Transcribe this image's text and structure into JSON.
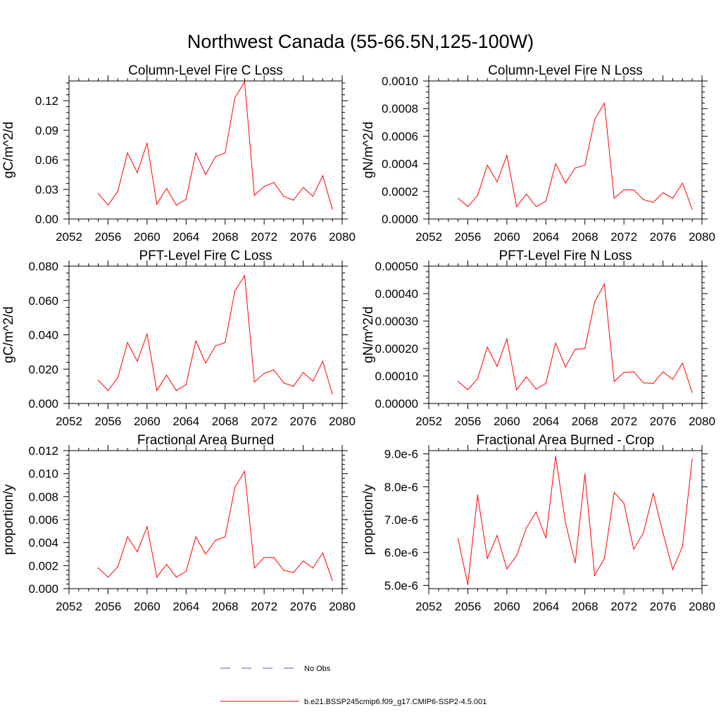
{
  "title": "Northwest Canada (55-66.5N,125-100W)",
  "colors": {
    "model": "#ff0000",
    "obs": "#5a5abf",
    "axis": "#000000"
  },
  "legend": {
    "obs_label": "No Obs",
    "model_label": "b.e21.BSSP245cmip6.f09_g17.CMIP6-SSP2-4.5.001"
  },
  "chart_data": [
    {
      "type": "line",
      "title": "Column-Level Fire C Loss",
      "ylabel": "gC/m^2/d",
      "xlim": [
        2052,
        2080
      ],
      "ylim": [
        0,
        0.14
      ],
      "xticks": [
        2052,
        2056,
        2060,
        2064,
        2068,
        2072,
        2076,
        2080
      ],
      "xtick_labels": [
        "2052",
        "2056",
        "2060",
        "2064",
        "2068",
        "2072",
        "2076",
        "2080"
      ],
      "yticks": [
        0,
        0.03,
        0.06,
        0.09,
        0.12
      ],
      "ytick_labels": [
        "0.00",
        "0.03",
        "0.06",
        "0.09",
        "0.12"
      ],
      "x": [
        2055,
        2056,
        2057,
        2058,
        2059,
        2060,
        2061,
        2062,
        2063,
        2064,
        2065,
        2066,
        2067,
        2068,
        2069,
        2070,
        2071,
        2072,
        2073,
        2074,
        2075,
        2076,
        2077,
        2078,
        2079
      ],
      "series": [
        {
          "name": "b.e21.BSSP245cmip6.f09_g17.CMIP6-SSP2-4.5.001",
          "values": [
            0.026,
            0.014,
            0.028,
            0.067,
            0.047,
            0.077,
            0.015,
            0.031,
            0.014,
            0.02,
            0.067,
            0.045,
            0.063,
            0.067,
            0.123,
            0.139,
            0.024,
            0.033,
            0.037,
            0.023,
            0.019,
            0.032,
            0.023,
            0.044,
            0.01
          ]
        }
      ]
    },
    {
      "type": "line",
      "title": "Column-Level Fire N Loss",
      "ylabel": "gN/m^2/d",
      "xlim": [
        2052,
        2080
      ],
      "ylim": [
        0,
        0.001
      ],
      "xticks": [
        2052,
        2056,
        2060,
        2064,
        2068,
        2072,
        2076,
        2080
      ],
      "xtick_labels": [
        "2052",
        "2056",
        "2060",
        "2064",
        "2068",
        "2072",
        "2076",
        "2080"
      ],
      "yticks": [
        0,
        0.0002,
        0.0004,
        0.0006,
        0.0008,
        0.001
      ],
      "ytick_labels": [
        "0.0000",
        "0.0002",
        "0.0004",
        "0.0006",
        "0.0008",
        "0.0010"
      ],
      "x": [
        2055,
        2056,
        2057,
        2058,
        2059,
        2060,
        2061,
        2062,
        2063,
        2064,
        2065,
        2066,
        2067,
        2068,
        2069,
        2070,
        2071,
        2072,
        2073,
        2074,
        2075,
        2076,
        2077,
        2078,
        2079
      ],
      "series": [
        {
          "name": "b.e21.BSSP245cmip6.f09_g17.CMIP6-SSP2-4.5.001",
          "values": [
            0.00015,
            9e-05,
            0.00017,
            0.00039,
            0.00027,
            0.00046,
            9e-05,
            0.00018,
            9e-05,
            0.00013,
            0.0004,
            0.00026,
            0.00037,
            0.00039,
            0.00072,
            0.00084,
            0.00015,
            0.00021,
            0.00021,
            0.00014,
            0.00012,
            0.00019,
            0.00015,
            0.00026,
            7e-05
          ]
        }
      ]
    },
    {
      "type": "line",
      "title": "PFT-Level Fire C Loss",
      "ylabel": "gC/m^2/d",
      "xlim": [
        2052,
        2080
      ],
      "ylim": [
        0,
        0.08
      ],
      "xticks": [
        2052,
        2056,
        2060,
        2064,
        2068,
        2072,
        2076,
        2080
      ],
      "xtick_labels": [
        "2052",
        "2056",
        "2060",
        "2064",
        "2068",
        "2072",
        "2076",
        "2080"
      ],
      "yticks": [
        0,
        0.02,
        0.04,
        0.06,
        0.08
      ],
      "ytick_labels": [
        "0.000",
        "0.020",
        "0.040",
        "0.060",
        "0.080"
      ],
      "x": [
        2055,
        2056,
        2057,
        2058,
        2059,
        2060,
        2061,
        2062,
        2063,
        2064,
        2065,
        2066,
        2067,
        2068,
        2069,
        2070,
        2071,
        2072,
        2073,
        2074,
        2075,
        2076,
        2077,
        2078,
        2079
      ],
      "series": [
        {
          "name": "b.e21.BSSP245cmip6.f09_g17.CMIP6-SSP2-4.5.001",
          "values": [
            0.0135,
            0.0075,
            0.015,
            0.0355,
            0.0245,
            0.0405,
            0.0075,
            0.0165,
            0.0075,
            0.011,
            0.0365,
            0.0235,
            0.0335,
            0.0355,
            0.0655,
            0.0745,
            0.0125,
            0.0175,
            0.0195,
            0.012,
            0.01,
            0.018,
            0.013,
            0.0245,
            0.0055
          ]
        }
      ]
    },
    {
      "type": "line",
      "title": "PFT-Level Fire N Loss",
      "ylabel": "gN/m^2/d",
      "xlim": [
        2052,
        2080
      ],
      "ylim": [
        0,
        0.0005
      ],
      "xticks": [
        2052,
        2056,
        2060,
        2064,
        2068,
        2072,
        2076,
        2080
      ],
      "xtick_labels": [
        "2052",
        "2056",
        "2060",
        "2064",
        "2068",
        "2072",
        "2076",
        "2080"
      ],
      "yticks": [
        0,
        0.0001,
        0.0002,
        0.0003,
        0.0004,
        0.0005
      ],
      "ytick_labels": [
        "0.00000",
        "0.00010",
        "0.00020",
        "0.00030",
        "0.00040",
        "0.00050"
      ],
      "x": [
        2055,
        2056,
        2057,
        2058,
        2059,
        2060,
        2061,
        2062,
        2063,
        2064,
        2065,
        2066,
        2067,
        2068,
        2069,
        2070,
        2071,
        2072,
        2073,
        2074,
        2075,
        2076,
        2077,
        2078,
        2079
      ],
      "series": [
        {
          "name": "b.e21.BSSP245cmip6.f09_g17.CMIP6-SSP2-4.5.001",
          "values": [
            8e-05,
            5e-05,
            9e-05,
            0.000205,
            0.000135,
            0.000235,
            5e-05,
            9.7e-05,
            5.2e-05,
            7.3e-05,
            0.00022,
            0.000133,
            0.000197,
            0.0002,
            0.00037,
            0.000435,
            8e-05,
            0.000113,
            0.000115,
            7.5e-05,
            7.3e-05,
            0.000115,
            8.8e-05,
            0.000147,
            4e-05
          ]
        }
      ]
    },
    {
      "type": "line",
      "title": "Fractional Area Burned",
      "ylabel": "proportion/y",
      "xlim": [
        2052,
        2080
      ],
      "ylim": [
        0,
        0.012
      ],
      "xticks": [
        2052,
        2056,
        2060,
        2064,
        2068,
        2072,
        2076,
        2080
      ],
      "xtick_labels": [
        "2052",
        "2056",
        "2060",
        "2064",
        "2068",
        "2072",
        "2076",
        "2080"
      ],
      "yticks": [
        0,
        0.002,
        0.004,
        0.006,
        0.008,
        0.01,
        0.012
      ],
      "ytick_labels": [
        "0.000",
        "0.002",
        "0.004",
        "0.006",
        "0.008",
        "0.010",
        "0.012"
      ],
      "x": [
        2055,
        2056,
        2057,
        2058,
        2059,
        2060,
        2061,
        2062,
        2063,
        2064,
        2065,
        2066,
        2067,
        2068,
        2069,
        2070,
        2071,
        2072,
        2073,
        2074,
        2075,
        2076,
        2077,
        2078,
        2079
      ],
      "series": [
        {
          "name": "b.e21.BSSP245cmip6.f09_g17.CMIP6-SSP2-4.5.001",
          "values": [
            0.0018,
            0.001,
            0.0019,
            0.0045,
            0.0032,
            0.0054,
            0.001,
            0.0021,
            0.001,
            0.0015,
            0.0045,
            0.003,
            0.0042,
            0.0045,
            0.0088,
            0.0102,
            0.0018,
            0.0027,
            0.0027,
            0.0016,
            0.0014,
            0.0024,
            0.0018,
            0.0031,
            0.0007
          ]
        }
      ]
    },
    {
      "type": "line",
      "title": "Fractional Area Burned - Crop",
      "ylabel": "proportion/y",
      "xlim": [
        2052,
        2080
      ],
      "ylim": [
        4.9e-06,
        9.1e-06
      ],
      "xticks": [
        2052,
        2056,
        2060,
        2064,
        2068,
        2072,
        2076,
        2080
      ],
      "xtick_labels": [
        "2052",
        "2056",
        "2060",
        "2064",
        "2068",
        "2072",
        "2076",
        "2080"
      ],
      "yticks": [
        5e-06,
        6e-06,
        7e-06,
        8e-06,
        9e-06
      ],
      "ytick_labels": [
        "5.0e-6",
        "6.0e-6",
        "7.0e-6",
        "8.0e-6",
        "9.0e-6"
      ],
      "x": [
        2055,
        2056,
        2057,
        2058,
        2059,
        2060,
        2061,
        2062,
        2063,
        2064,
        2065,
        2066,
        2067,
        2068,
        2069,
        2070,
        2071,
        2072,
        2073,
        2074,
        2075,
        2076,
        2077,
        2078,
        2079
      ],
      "series": [
        {
          "name": "b.e21.BSSP245cmip6.f09_g17.CMIP6-SSP2-4.5.001",
          "values": [
            6.42e-06,
            5.02e-06,
            7.75e-06,
            5.82e-06,
            6.52e-06,
            5.5e-06,
            5.9e-06,
            6.75e-06,
            7.23e-06,
            6.44e-06,
            8.93e-06,
            6.92e-06,
            5.68e-06,
            8.38e-06,
            5.3e-06,
            5.82e-06,
            7.83e-06,
            7.5e-06,
            6.1e-06,
            6.6e-06,
            7.8e-06,
            6.6e-06,
            5.48e-06,
            6.18e-06,
            8.85e-06
          ]
        }
      ]
    }
  ]
}
